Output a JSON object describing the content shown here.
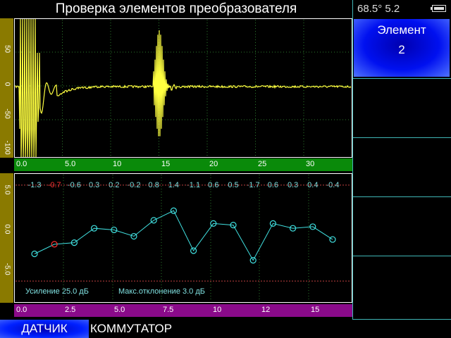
{
  "header": {
    "title": "Проверка элементов преобразователя"
  },
  "status": {
    "text": "68.5° 5.2",
    "battery_icon": "battery-icon"
  },
  "side_panel": {
    "element_label": "Элемент",
    "element_value": "2"
  },
  "upper_plot": {
    "y_ticks": [
      "50",
      "0",
      "-50",
      "-100"
    ],
    "x_ticks": [
      "0.0",
      "5.0",
      "10",
      "15",
      "20",
      "25",
      "30"
    ],
    "trace_color": "#ffff40",
    "axis_color": "#8a7a00",
    "scale_color": "#0a8a0a"
  },
  "lower_plot": {
    "y_ticks": [
      "5.0",
      "0.0",
      "-5.0"
    ],
    "x_ticks": [
      "0.0",
      "2.5",
      "5.0",
      "7.5",
      "10",
      "12",
      "15"
    ],
    "deviations": [
      "-1.3",
      "-0.7",
      "-0.6",
      "0.3",
      "0.2",
      "-0.2",
      "0.8",
      "1.4",
      "-1.1",
      "0.6",
      "0.5",
      "-1.7",
      "0.6",
      "0.3",
      "0.4",
      "-0.4"
    ],
    "deviation_values": [
      -1.3,
      -0.7,
      -0.6,
      0.3,
      0.2,
      -0.2,
      0.8,
      1.4,
      -1.1,
      0.6,
      0.5,
      -1.7,
      0.6,
      0.3,
      0.4,
      -0.4
    ],
    "selected_index": 1,
    "limit": 3.0,
    "gain_text": "Усиление  25.0 дБ",
    "max_dev_text": "Макс.отклонение   3.0 дБ",
    "line_color": "#40e0e0",
    "limit_color": "#c04040",
    "scale_color": "#8a0a8a"
  },
  "footer": {
    "sensor_button": "ДАТЧИК",
    "switch_button": "КОММУТАТОР"
  },
  "colors": {
    "accent_blue": "#0020ff",
    "frame": "#3fb6b6"
  }
}
